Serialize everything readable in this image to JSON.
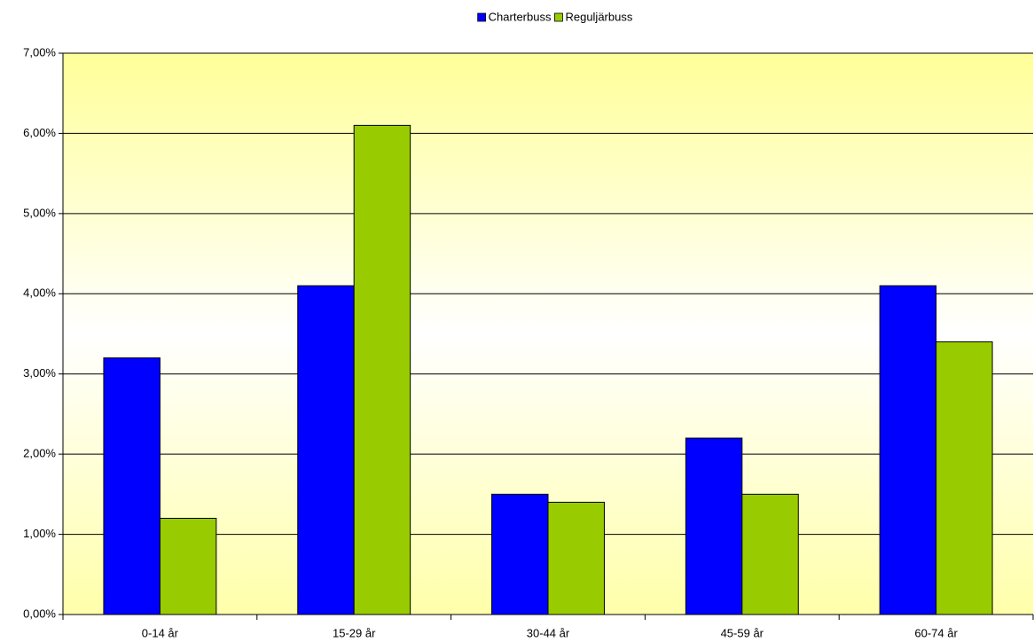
{
  "chart_data": {
    "type": "bar",
    "categories": [
      "0-14 år",
      "15-29 år",
      "30-44 år",
      "45-59 år",
      "60-74 år"
    ],
    "series": [
      {
        "name": "Charterbuss",
        "color": "#0000ff",
        "values": [
          3.2,
          4.1,
          1.5,
          2.2,
          4.1
        ]
      },
      {
        "name": "Reguljärbuss",
        "color": "#99cc00",
        "values": [
          1.2,
          6.1,
          1.4,
          1.5,
          3.4
        ]
      }
    ],
    "ylim": [
      0,
      7
    ],
    "yticks": [
      {
        "value": 0,
        "label": "0,00%"
      },
      {
        "value": 1,
        "label": "1,00%"
      },
      {
        "value": 2,
        "label": "2,00%"
      },
      {
        "value": 3,
        "label": "3,00%"
      },
      {
        "value": 4,
        "label": "4,00%"
      },
      {
        "value": 5,
        "label": "5,00%"
      },
      {
        "value": 6,
        "label": "6,00%"
      },
      {
        "value": 7,
        "label": "7,00%"
      }
    ],
    "grid": true,
    "legend": "top"
  }
}
